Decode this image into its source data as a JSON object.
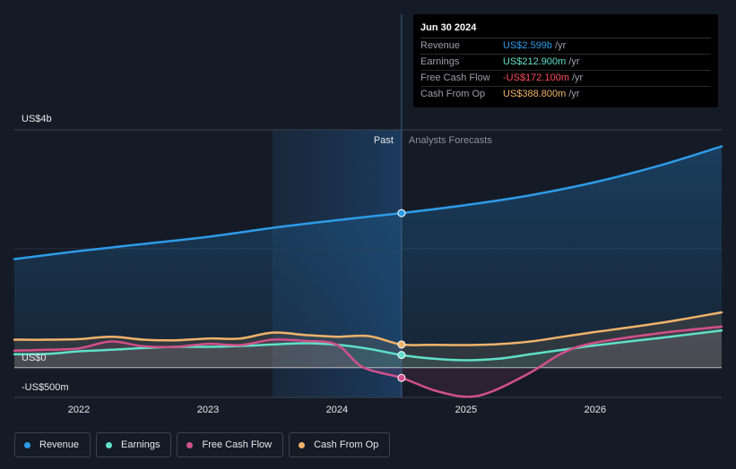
{
  "tooltip": {
    "date": "Jun 30 2024",
    "rows": [
      {
        "name": "Revenue",
        "value": "US$2.599b",
        "unit": "/yr",
        "color": "#2d9be8"
      },
      {
        "name": "Earnings",
        "value": "US$212.900m",
        "unit": "/yr",
        "color": "#5fe0c9"
      },
      {
        "name": "Free Cash Flow",
        "value": "-US$172.100m",
        "unit": "/yr",
        "color": "#ff4d5e"
      },
      {
        "name": "Cash From Op",
        "value": "US$388.800m",
        "unit": "/yr",
        "color": "#f0b36a"
      }
    ]
  },
  "regions": {
    "past": "Past",
    "forecast": "Analysts Forecasts"
  },
  "colors": {
    "revenue": "#2d9be8",
    "earnings": "#5fe0c9",
    "fcf": "#d1508a",
    "cfo": "#f0b36a",
    "background": "#151b26",
    "highlight": "#1b3550"
  },
  "chart_data": {
    "type": "line",
    "title": "",
    "xlabel": "",
    "ylabel": "",
    "y_unit_labels": {
      "top": "US$4b",
      "zero": "US$0",
      "bottom": "-US$500m"
    },
    "ylim": [
      -500,
      4000
    ],
    "xlim": [
      2021.5,
      2026.98
    ],
    "x_tick_labels": [
      "2022",
      "2023",
      "2024",
      "2025",
      "2026"
    ],
    "x_ticks": [
      2022,
      2023,
      2024,
      2025,
      2026
    ],
    "past_region": [
      2023.5,
      2024.5
    ],
    "marker_x": 2024.5,
    "series": [
      {
        "name": "Revenue",
        "key": "revenue",
        "points": [
          [
            2021.5,
            1825
          ],
          [
            2022,
            1960
          ],
          [
            2022.5,
            2080
          ],
          [
            2023,
            2200
          ],
          [
            2023.5,
            2350
          ],
          [
            2024,
            2480
          ],
          [
            2024.5,
            2599
          ],
          [
            2025,
            2735
          ],
          [
            2025.5,
            2900
          ],
          [
            2026,
            3120
          ],
          [
            2026.5,
            3400
          ],
          [
            2026.98,
            3720
          ]
        ]
      },
      {
        "name": "Earnings",
        "key": "earnings",
        "points": [
          [
            2021.5,
            225
          ],
          [
            2021.75,
            232
          ],
          [
            2022,
            275
          ],
          [
            2022.25,
            300
          ],
          [
            2022.5,
            330
          ],
          [
            2022.75,
            350
          ],
          [
            2023,
            350
          ],
          [
            2023.25,
            365
          ],
          [
            2023.5,
            390
          ],
          [
            2023.75,
            410
          ],
          [
            2024,
            385
          ],
          [
            2024.25,
            315
          ],
          [
            2024.5,
            213
          ],
          [
            2024.75,
            150
          ],
          [
            2025,
            125
          ],
          [
            2025.25,
            150
          ],
          [
            2025.5,
            225
          ],
          [
            2025.75,
            300
          ],
          [
            2026,
            375
          ],
          [
            2026.5,
            500
          ],
          [
            2026.98,
            625
          ]
        ]
      },
      {
        "name": "Free Cash Flow",
        "key": "fcf",
        "points": [
          [
            2021.5,
            285
          ],
          [
            2021.75,
            300
          ],
          [
            2022,
            325
          ],
          [
            2022.25,
            440
          ],
          [
            2022.5,
            360
          ],
          [
            2022.75,
            350
          ],
          [
            2023,
            400
          ],
          [
            2023.25,
            380
          ],
          [
            2023.5,
            470
          ],
          [
            2023.75,
            450
          ],
          [
            2024,
            385
          ],
          [
            2024.2,
            10
          ],
          [
            2024.5,
            -172
          ],
          [
            2024.75,
            -380
          ],
          [
            2025,
            -490
          ],
          [
            2025.2,
            -400
          ],
          [
            2025.5,
            -80
          ],
          [
            2025.75,
            250
          ],
          [
            2026,
            420
          ],
          [
            2026.5,
            580
          ],
          [
            2026.98,
            690
          ]
        ]
      },
      {
        "name": "Cash From Op",
        "key": "cfo",
        "points": [
          [
            2021.5,
            470
          ],
          [
            2021.75,
            470
          ],
          [
            2022,
            480
          ],
          [
            2022.25,
            520
          ],
          [
            2022.5,
            470
          ],
          [
            2022.75,
            460
          ],
          [
            2023,
            490
          ],
          [
            2023.25,
            490
          ],
          [
            2023.5,
            590
          ],
          [
            2023.75,
            550
          ],
          [
            2024,
            520
          ],
          [
            2024.25,
            530
          ],
          [
            2024.5,
            389
          ],
          [
            2024.75,
            385
          ],
          [
            2025,
            380
          ],
          [
            2025.25,
            395
          ],
          [
            2025.5,
            440
          ],
          [
            2025.75,
            520
          ],
          [
            2026,
            600
          ],
          [
            2026.5,
            750
          ],
          [
            2026.98,
            930
          ]
        ]
      }
    ]
  },
  "legend": [
    {
      "label": "Revenue",
      "color": "#2d9be8"
    },
    {
      "label": "Earnings",
      "color": "#5fe0c9"
    },
    {
      "label": "Free Cash Flow",
      "color": "#d1508a"
    },
    {
      "label": "Cash From Op",
      "color": "#f0b36a"
    }
  ]
}
